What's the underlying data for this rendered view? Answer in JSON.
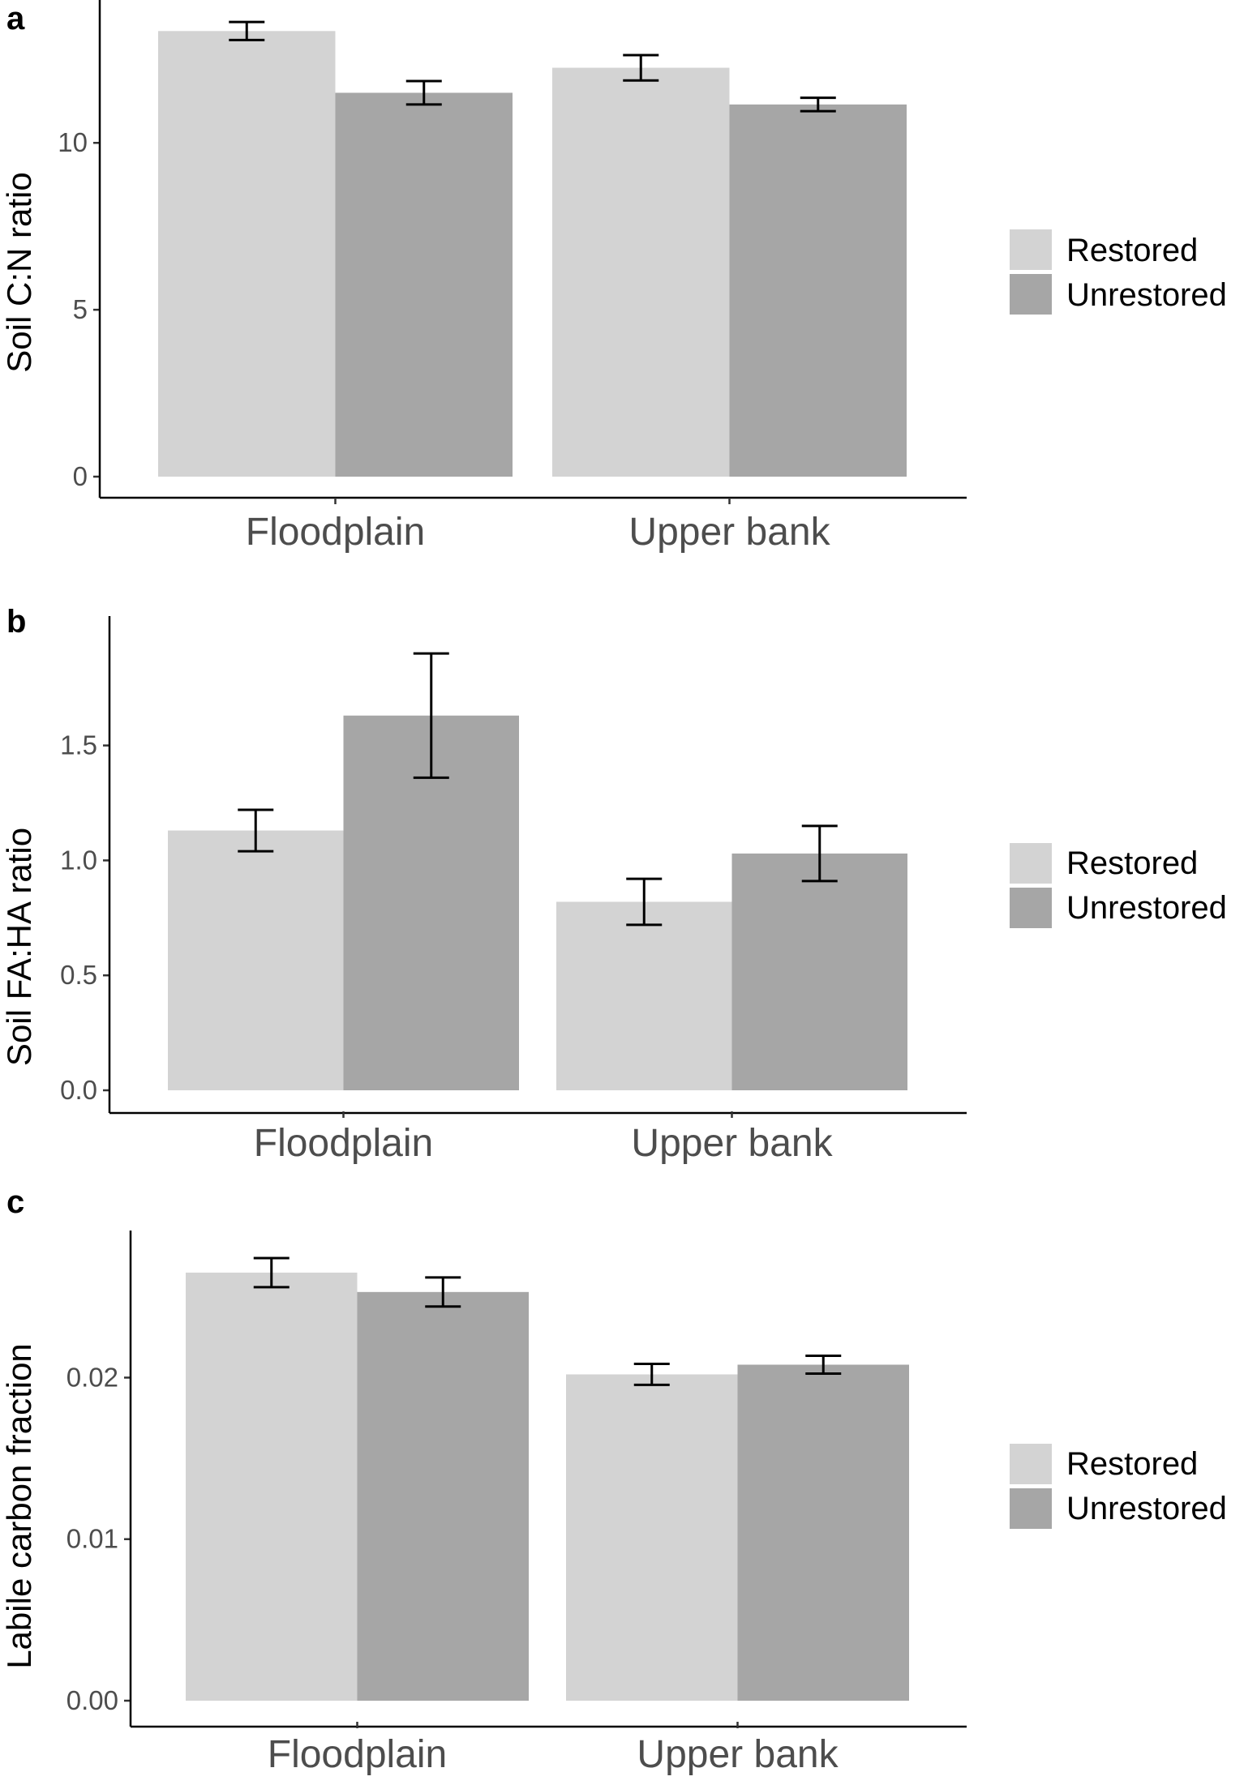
{
  "colors": {
    "restored": "#d3d3d3",
    "unrestored": "#a6a6a6",
    "error_bar": "#000000"
  },
  "chart_data": [
    {
      "panel": "a",
      "type": "bar",
      "categories": [
        "Floodplain",
        "Upper bank"
      ],
      "ylabel": "Soil C:N ratio",
      "ylim": [
        0,
        13.6
      ],
      "yticks": [
        0,
        5,
        10
      ],
      "ytick_labels": [
        "0",
        "5",
        "10"
      ],
      "series": [
        {
          "name": "Restored",
          "values": [
            13.35,
            12.25
          ],
          "errors": [
            0.27,
            0.38
          ]
        },
        {
          "name": "Unrestored",
          "values": [
            11.5,
            11.15
          ],
          "errors": [
            0.35,
            0.2
          ]
        }
      ],
      "legend": "right",
      "grid": false
    },
    {
      "panel": "b",
      "type": "bar",
      "categories": [
        "Floodplain",
        "Upper bank"
      ],
      "ylabel": "Soil FA:HA ratio",
      "ylim": [
        0,
        1.95
      ],
      "yticks": [
        0,
        0.5,
        1,
        1.5
      ],
      "ytick_labels": [
        "0.0",
        "0.5",
        "1.0",
        "1.5"
      ],
      "series": [
        {
          "name": "Restored",
          "values": [
            1.13,
            0.82
          ],
          "errors": [
            0.09,
            0.1
          ]
        },
        {
          "name": "Unrestored",
          "values": [
            1.63,
            1.03
          ],
          "errors": [
            0.27,
            0.12
          ]
        }
      ],
      "legend": "right",
      "grid": false
    },
    {
      "panel": "c",
      "type": "bar",
      "categories": [
        "Floodplain",
        "Upper bank"
      ],
      "ylabel": "Labile carbon fraction",
      "ylim": [
        0,
        0.0278
      ],
      "yticks": [
        0,
        0.01,
        0.02
      ],
      "ytick_labels": [
        "0.00",
        "0.01",
        "0.02"
      ],
      "series": [
        {
          "name": "Restored",
          "values": [
            0.0265,
            0.0202
          ],
          "errors": [
            0.0009,
            0.00065
          ]
        },
        {
          "name": "Unrestored",
          "values": [
            0.0253,
            0.0208
          ],
          "errors": [
            0.0009,
            0.00055
          ]
        }
      ],
      "legend": "right",
      "grid": false
    }
  ]
}
